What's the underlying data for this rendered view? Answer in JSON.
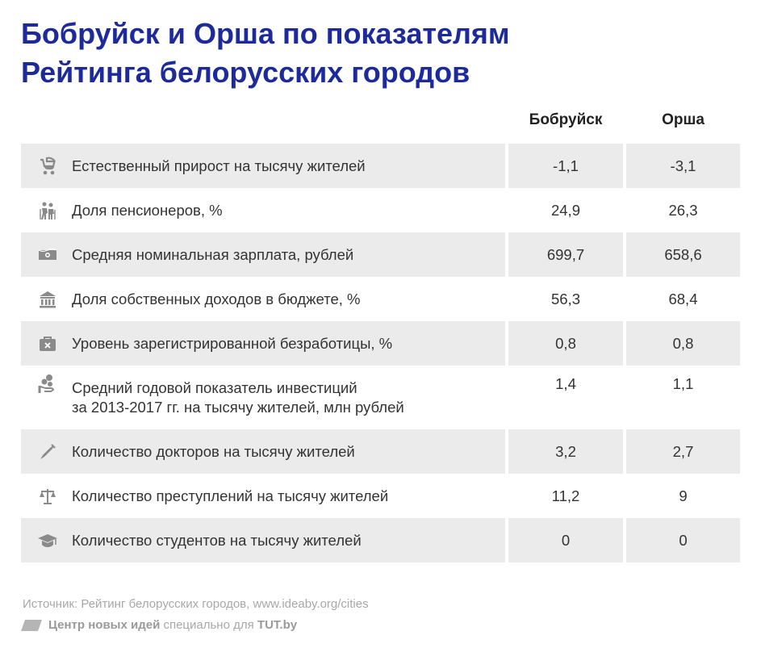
{
  "title_line1": "Бобруйск и Орша по показателям",
  "title_line2": "Рейтинга белорусских городов",
  "columns": [
    "Бобруйск",
    "Орша"
  ],
  "chart_data": {
    "type": "table",
    "columns": [
      "Бобруйск",
      "Орша"
    ],
    "rows": [
      {
        "icon": "baby-stroller-icon",
        "label": [
          "Естественный прирост на тысячу жителей"
        ],
        "values": [
          "-1,1",
          "-3,1"
        ]
      },
      {
        "icon": "elderly-people-icon",
        "label": [
          "Доля пенсионеров, %"
        ],
        "values": [
          "24,9",
          "26,3"
        ]
      },
      {
        "icon": "money-bill-icon",
        "label": [
          "Средняя номинальная зарплата, рублей"
        ],
        "values": [
          "699,7",
          "658,6"
        ]
      },
      {
        "icon": "bank-building-icon",
        "label": [
          "Доля собственных доходов в бюджете, %"
        ],
        "values": [
          "56,3",
          "68,4"
        ]
      },
      {
        "icon": "briefcase-x-icon",
        "label": [
          "Уровень зарегистрированной безработицы, %"
        ],
        "values": [
          "0,8",
          "0,8"
        ]
      },
      {
        "icon": "coins-hand-icon",
        "label": [
          "Средний годовой показатель инвестиций",
          "за 2013-2017 гг. на тысячу жителей, млн рублей"
        ],
        "values": [
          "1,4",
          "1,1"
        ]
      },
      {
        "icon": "syringe-icon",
        "label": [
          "Количество докторов на тысячу жителей"
        ],
        "values": [
          "3,2",
          "2,7"
        ]
      },
      {
        "icon": "scales-icon",
        "label": [
          "Количество преступлений на тысячу жителей"
        ],
        "values": [
          "11,2",
          "9"
        ]
      },
      {
        "icon": "graduation-cap-icon",
        "label": [
          "Количество студентов на тысячу жителей"
        ],
        "values": [
          "0",
          "0"
        ]
      }
    ]
  },
  "source": "Источник: Рейтинг белорусских городов, www.ideaby.org/cities",
  "credit": {
    "org": "Центр новых идей",
    "middle": " специально для ",
    "site": "TUT.by"
  },
  "colors": {
    "title": "#1c2a9c",
    "row_shade": "#ebebeb",
    "icon": "#8a8a8a"
  }
}
